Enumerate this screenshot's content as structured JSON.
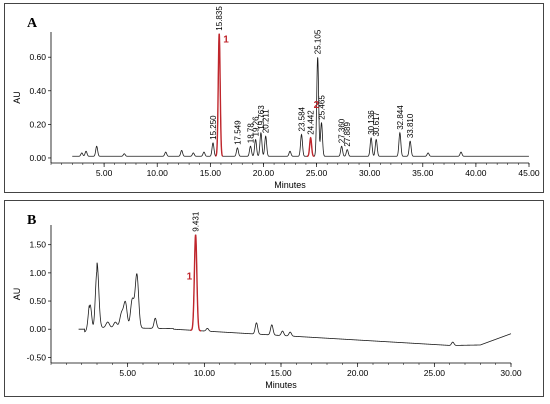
{
  "chart_data": [
    {
      "type": "line",
      "panel_label": "A",
      "xlabel": "Minutes",
      "ylabel": "AU",
      "xlim": [
        0,
        45
      ],
      "ylim": [
        -0.03,
        0.75
      ],
      "x_ticks": [
        5.0,
        10.0,
        15.0,
        20.0,
        25.0,
        30.0,
        35.0,
        40.0,
        45.0
      ],
      "x_tick_labels": [
        "5.00",
        "10.00",
        "15.00",
        "20.00",
        "25.00",
        "30.00",
        "35.00",
        "40.00",
        "45.00"
      ],
      "y_ticks": [
        0.0,
        0.2,
        0.4,
        0.6
      ],
      "y_tick_labels": [
        "0.00",
        "0.20",
        "0.40",
        "0.60"
      ],
      "baseline": 0.01,
      "line_color": "#1a1a1a",
      "highlight_color": "#c0262c",
      "peaks": [
        {
          "t": 2.9,
          "h": 0.02
        },
        {
          "t": 3.3,
          "h": 0.03
        },
        {
          "t": 4.3,
          "h": 0.06
        },
        {
          "t": 6.9,
          "h": 0.015
        },
        {
          "t": 10.8,
          "h": 0.025
        },
        {
          "t": 12.3,
          "h": 0.035
        },
        {
          "t": 13.4,
          "h": 0.02
        },
        {
          "t": 14.4,
          "h": 0.025
        },
        {
          "t": 15.25,
          "h": 0.08,
          "label": "15.250"
        },
        {
          "t": 15.835,
          "h": 0.73,
          "label": "15.835",
          "highlight": true,
          "number": "1"
        },
        {
          "t": 17.549,
          "h": 0.05,
          "label": "17.549"
        },
        {
          "t": 18.78,
          "h": 0.06,
          "label": "18.78"
        },
        {
          "t": 19.26,
          "h": 0.1,
          "label": "19.26"
        },
        {
          "t": 19.763,
          "h": 0.14,
          "label": "19.763"
        },
        {
          "t": 20.211,
          "h": 0.12,
          "label": "20.211"
        },
        {
          "t": 22.5,
          "h": 0.03
        },
        {
          "t": 23.584,
          "h": 0.13,
          "label": "23.584"
        },
        {
          "t": 24.442,
          "h": 0.11,
          "label": "24.442",
          "highlight": true,
          "number": "2"
        },
        {
          "t": 25.105,
          "h": 0.59,
          "label": "25.105"
        },
        {
          "t": 25.465,
          "h": 0.2,
          "label": "25.465"
        },
        {
          "t": 27.36,
          "h": 0.06,
          "label": "27.360"
        },
        {
          "t": 27.889,
          "h": 0.04,
          "label": "27.889"
        },
        {
          "t": 30.136,
          "h": 0.11,
          "label": "30.136"
        },
        {
          "t": 30.617,
          "h": 0.1,
          "label": "30.617"
        },
        {
          "t": 32.844,
          "h": 0.14,
          "label": "32.844"
        },
        {
          "t": 33.81,
          "h": 0.09,
          "label": "33.810"
        },
        {
          "t": 35.5,
          "h": 0.02
        },
        {
          "t": 38.6,
          "h": 0.025
        }
      ]
    },
    {
      "type": "line",
      "panel_label": "B",
      "xlabel": "Minutes",
      "ylabel": "AU",
      "xlim": [
        0,
        30
      ],
      "ylim": [
        -0.6,
        1.85
      ],
      "x_ticks": [
        5.0,
        10.0,
        15.0,
        20.0,
        25.0,
        30.0
      ],
      "x_tick_labels": [
        "5.00",
        "10.00",
        "15.00",
        "20.00",
        "25.00",
        "30.00"
      ],
      "y_ticks": [
        -0.5,
        0.0,
        0.5,
        1.0,
        1.5
      ],
      "y_tick_labels": [
        "-0.50",
        "0.00",
        "0.50",
        "1.00",
        "1.50"
      ],
      "line_color": "#1a1a1a",
      "highlight_color": "#c0262c",
      "peaks": [
        {
          "t": 2.55,
          "h": 0.55
        },
        {
          "t": 3.0,
          "h": 1.15
        },
        {
          "t": 3.7,
          "h": 0.1
        },
        {
          "t": 4.2,
          "h": 0.1
        },
        {
          "t": 4.6,
          "h": 0.25
        },
        {
          "t": 4.85,
          "h": 0.45
        },
        {
          "t": 5.3,
          "h": 0.5
        },
        {
          "t": 5.6,
          "h": 0.95
        },
        {
          "t": 6.8,
          "h": 0.18
        },
        {
          "t": 9.431,
          "h": 1.7,
          "label": "9.431",
          "highlight": true,
          "number": "1"
        },
        {
          "t": 10.2,
          "h": 0.05
        },
        {
          "t": 13.4,
          "h": 0.2
        },
        {
          "t": 14.4,
          "h": 0.18
        },
        {
          "t": 15.1,
          "h": 0.08
        },
        {
          "t": 15.6,
          "h": 0.07
        },
        {
          "t": 26.2,
          "h": 0.06
        }
      ]
    }
  ]
}
